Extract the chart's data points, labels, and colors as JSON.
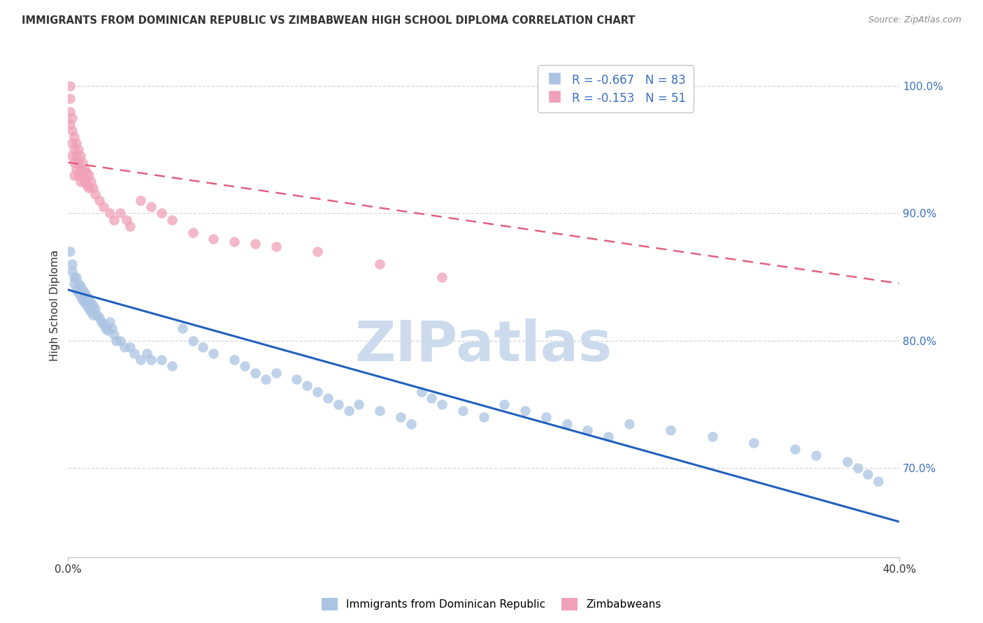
{
  "title": "IMMIGRANTS FROM DOMINICAN REPUBLIC VS ZIMBABWEAN HIGH SCHOOL DIPLOMA CORRELATION CHART",
  "source": "Source: ZipAtlas.com",
  "ylabel": "High School Diploma",
  "xlim": [
    0.0,
    0.4
  ],
  "ylim": [
    0.63,
    1.025
  ],
  "x_ticks": [
    0.0,
    0.4
  ],
  "x_tick_labels": [
    "0.0%",
    "40.0%"
  ],
  "y_ticks_right": [
    0.7,
    0.8,
    0.9,
    1.0
  ],
  "y_tick_labels_right": [
    "70.0%",
    "80.0%",
    "90.0%",
    "100.0%"
  ],
  "legend_r1": "-0.667",
  "legend_n1": "83",
  "legend_r2": "-0.153",
  "legend_n2": "51",
  "blue_color": "#aac4e2",
  "blue_line_color": "#2060bf",
  "pink_color": "#f0a0b8",
  "pink_line_color": "#e06080",
  "title_color": "#333333",
  "source_color": "#888888",
  "grid_color": "#cccccc",
  "blue_scatter_x": [
    0.001,
    0.002,
    0.002,
    0.003,
    0.003,
    0.004,
    0.004,
    0.005,
    0.005,
    0.006,
    0.006,
    0.007,
    0.007,
    0.008,
    0.008,
    0.009,
    0.009,
    0.01,
    0.01,
    0.011,
    0.011,
    0.012,
    0.012,
    0.013,
    0.014,
    0.015,
    0.016,
    0.017,
    0.018,
    0.019,
    0.02,
    0.021,
    0.022,
    0.023,
    0.025,
    0.027,
    0.03,
    0.032,
    0.035,
    0.038,
    0.04,
    0.045,
    0.05,
    0.055,
    0.06,
    0.065,
    0.07,
    0.08,
    0.085,
    0.09,
    0.095,
    0.1,
    0.11,
    0.115,
    0.12,
    0.125,
    0.13,
    0.135,
    0.14,
    0.15,
    0.16,
    0.165,
    0.17,
    0.175,
    0.18,
    0.19,
    0.2,
    0.21,
    0.22,
    0.23,
    0.24,
    0.25,
    0.26,
    0.27,
    0.29,
    0.31,
    0.33,
    0.35,
    0.36,
    0.375,
    0.38,
    0.385,
    0.39
  ],
  "blue_scatter_y": [
    0.87,
    0.86,
    0.855,
    0.85,
    0.845,
    0.85,
    0.84,
    0.845,
    0.838,
    0.843,
    0.835,
    0.84,
    0.832,
    0.838,
    0.83,
    0.835,
    0.828,
    0.832,
    0.825,
    0.83,
    0.823,
    0.828,
    0.82,
    0.825,
    0.82,
    0.818,
    0.815,
    0.813,
    0.81,
    0.808,
    0.815,
    0.81,
    0.805,
    0.8,
    0.8,
    0.795,
    0.795,
    0.79,
    0.785,
    0.79,
    0.785,
    0.785,
    0.78,
    0.81,
    0.8,
    0.795,
    0.79,
    0.785,
    0.78,
    0.775,
    0.77,
    0.775,
    0.77,
    0.765,
    0.76,
    0.755,
    0.75,
    0.745,
    0.75,
    0.745,
    0.74,
    0.735,
    0.76,
    0.755,
    0.75,
    0.745,
    0.74,
    0.75,
    0.745,
    0.74,
    0.735,
    0.73,
    0.725,
    0.735,
    0.73,
    0.725,
    0.72,
    0.715,
    0.71,
    0.705,
    0.7,
    0.695,
    0.69
  ],
  "pink_scatter_x": [
    0.001,
    0.001,
    0.001,
    0.001,
    0.002,
    0.002,
    0.002,
    0.002,
    0.003,
    0.003,
    0.003,
    0.003,
    0.004,
    0.004,
    0.004,
    0.005,
    0.005,
    0.005,
    0.006,
    0.006,
    0.006,
    0.007,
    0.007,
    0.008,
    0.008,
    0.009,
    0.009,
    0.01,
    0.01,
    0.011,
    0.012,
    0.013,
    0.015,
    0.017,
    0.02,
    0.022,
    0.025,
    0.028,
    0.03,
    0.035,
    0.04,
    0.045,
    0.05,
    0.06,
    0.07,
    0.08,
    0.09,
    0.1,
    0.12,
    0.15,
    0.18
  ],
  "pink_scatter_y": [
    1.0,
    0.99,
    0.98,
    0.97,
    0.975,
    0.965,
    0.955,
    0.945,
    0.96,
    0.95,
    0.94,
    0.93,
    0.955,
    0.945,
    0.935,
    0.95,
    0.94,
    0.93,
    0.945,
    0.935,
    0.925,
    0.94,
    0.93,
    0.935,
    0.925,
    0.932,
    0.922,
    0.93,
    0.92,
    0.925,
    0.92,
    0.915,
    0.91,
    0.905,
    0.9,
    0.895,
    0.9,
    0.895,
    0.89,
    0.91,
    0.905,
    0.9,
    0.895,
    0.885,
    0.88,
    0.878,
    0.876,
    0.874,
    0.87,
    0.86,
    0.85
  ],
  "blue_line_x0": 0.0,
  "blue_line_x1": 0.4,
  "blue_line_y0": 0.84,
  "blue_line_y1": 0.658,
  "pink_line_x0": 0.0,
  "pink_line_x1": 0.4,
  "pink_line_y0": 0.94,
  "pink_line_y1": 0.845,
  "watermark": "ZIPatlas",
  "watermark_color": "#ccdaed",
  "background_color": "#ffffff"
}
